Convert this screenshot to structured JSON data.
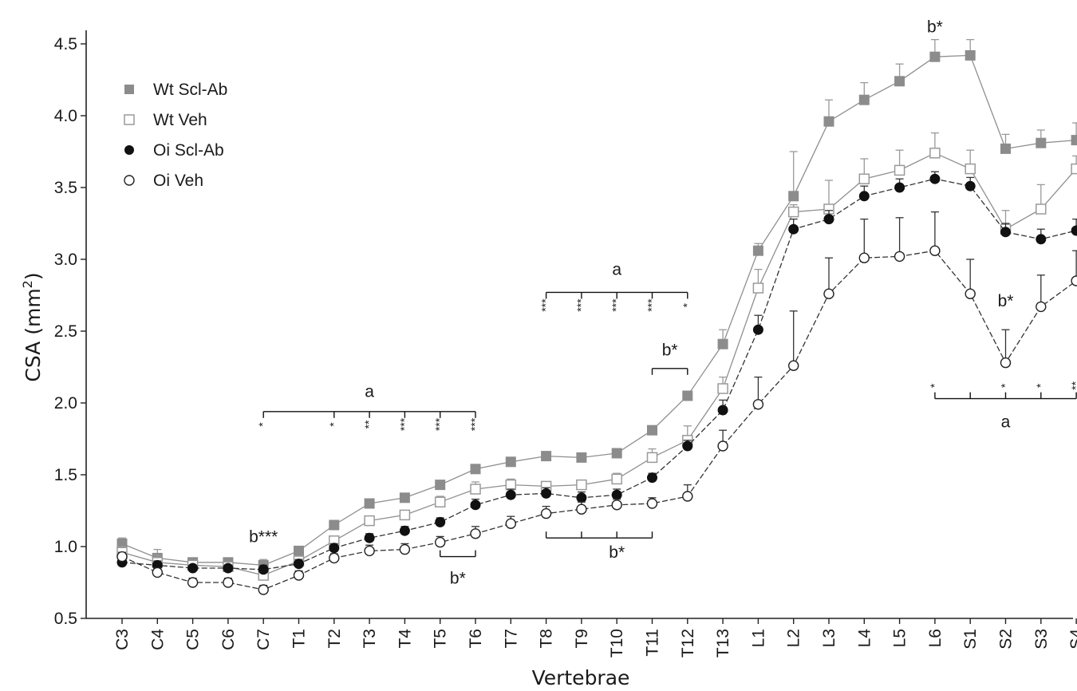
{
  "chart_data": {
    "type": "line",
    "xlabel": "Vertebrae",
    "ylabel_main": "CSA (mm",
    "ylabel_sup": "2",
    "ylabel_close": ")",
    "ylim": [
      0.5,
      4.6
    ],
    "yticks": [
      "0.5",
      "1.0",
      "1.5",
      "2.0",
      "2.5",
      "3.0",
      "3.5",
      "4.0",
      "4.5"
    ],
    "ytick_values": [
      0.5,
      1.0,
      1.5,
      2.0,
      2.5,
      3.0,
      3.5,
      4.0,
      4.5
    ],
    "categories": [
      "C3",
      "C4",
      "C5",
      "C6",
      "C7",
      "T1",
      "T2",
      "T3",
      "T4",
      "T5",
      "T6",
      "T7",
      "T8",
      "T9",
      "T10",
      "T11",
      "T12",
      "T13",
      "L1",
      "L2",
      "L3",
      "L4",
      "L5",
      "L6",
      "S1",
      "S2",
      "S3",
      "S4"
    ],
    "grid": false,
    "legend_position": "top-left",
    "series": [
      {
        "name": "Wt Scl-Ab",
        "marker": "square-filled",
        "color": "#8c8c8c",
        "values": [
          1.02,
          0.92,
          0.89,
          0.89,
          0.87,
          0.97,
          1.15,
          1.3,
          1.34,
          1.43,
          1.54,
          1.59,
          1.63,
          1.62,
          1.65,
          1.81,
          2.05,
          2.41,
          3.06,
          3.44,
          3.96,
          4.11,
          4.24,
          4.41,
          4.42,
          3.77,
          3.81,
          3.83
        ],
        "errors": [
          0.04,
          0.06,
          0.03,
          0.03,
          0.04,
          0.03,
          0.03,
          0.03,
          0.03,
          0.03,
          0.02,
          0.02,
          0.02,
          0.02,
          0.02,
          0.03,
          0.03,
          0.1,
          0.05,
          0.31,
          0.15,
          0.12,
          0.12,
          0.12,
          0.11,
          0.1,
          0.09,
          0.12
        ]
      },
      {
        "name": "Wt Veh",
        "marker": "square-open",
        "color": "#9a9a9a",
        "values": [
          0.96,
          0.89,
          0.87,
          0.86,
          0.8,
          0.9,
          1.04,
          1.18,
          1.22,
          1.31,
          1.4,
          1.43,
          1.42,
          1.43,
          1.47,
          1.62,
          1.74,
          2.1,
          2.8,
          3.33,
          3.35,
          3.56,
          3.62,
          3.74,
          3.63,
          3.21,
          3.35,
          3.63
        ],
        "errors": [
          0.04,
          0.05,
          0.03,
          0.03,
          0.04,
          0.03,
          0.03,
          0.03,
          0.03,
          0.04,
          0.05,
          0.04,
          0.03,
          0.03,
          0.04,
          0.06,
          0.1,
          0.08,
          0.13,
          0.05,
          0.2,
          0.14,
          0.14,
          0.14,
          0.13,
          0.13,
          0.17,
          0.09
        ]
      },
      {
        "name": "Oi Scl-Ab",
        "marker": "circle-filled",
        "color": "#111111",
        "values": [
          0.89,
          0.87,
          0.85,
          0.85,
          0.84,
          0.88,
          0.99,
          1.06,
          1.11,
          1.17,
          1.29,
          1.36,
          1.37,
          1.34,
          1.36,
          1.48,
          1.7,
          1.95,
          2.51,
          3.21,
          3.28,
          3.44,
          3.5,
          3.56,
          3.51,
          3.19,
          3.14,
          3.2
        ],
        "errors": [
          0.02,
          0.03,
          0.02,
          0.02,
          0.03,
          0.03,
          0.03,
          0.03,
          0.03,
          0.03,
          0.04,
          0.04,
          0.04,
          0.04,
          0.04,
          0.03,
          0.04,
          0.07,
          0.1,
          0.07,
          0.06,
          0.07,
          0.06,
          0.05,
          0.06,
          0.06,
          0.07,
          0.08
        ]
      },
      {
        "name": "Oi Veh",
        "marker": "circle-open",
        "color": "#111111",
        "values": [
          0.93,
          0.82,
          0.75,
          0.75,
          0.7,
          0.8,
          0.92,
          0.97,
          0.98,
          1.03,
          1.09,
          1.16,
          1.23,
          1.26,
          1.29,
          1.3,
          1.35,
          1.7,
          1.99,
          2.26,
          2.76,
          3.01,
          3.02,
          3.06,
          2.76,
          2.28,
          2.67,
          2.85
        ],
        "errors": [
          0.03,
          0.03,
          0.03,
          0.03,
          0.03,
          0.03,
          0.03,
          0.04,
          0.04,
          0.04,
          0.05,
          0.05,
          0.05,
          0.05,
          0.04,
          0.04,
          0.08,
          0.11,
          0.19,
          0.38,
          0.25,
          0.27,
          0.27,
          0.27,
          0.24,
          0.23,
          0.22,
          0.21
        ]
      }
    ],
    "annotations": [
      {
        "text": "b***",
        "cat": 4,
        "y": 1.07
      },
      {
        "text": "b*",
        "cat": 23,
        "y": 4.62
      },
      {
        "text": "b*",
        "cat": 25,
        "y": 2.71
      },
      {
        "text": "b*",
        "cat": 9.5,
        "y": 0.78
      },
      {
        "text": "b*",
        "cat": 14,
        "y": 0.96
      },
      {
        "text": "b*",
        "cat": 15.5,
        "y": 2.37
      },
      {
        "text": "a",
        "cat": 7,
        "y": 2.08
      },
      {
        "text": "a",
        "cat": 14,
        "y": 2.93
      },
      {
        "text": "a",
        "cat": 25,
        "y": 1.87
      }
    ],
    "stars": [
      {
        "text": "*",
        "cat": 4,
        "y": 1.85
      },
      {
        "text": "*",
        "cat": 6,
        "y": 1.85
      },
      {
        "text": "**",
        "cat": 7,
        "y": 1.85
      },
      {
        "text": "***",
        "cat": 8,
        "y": 1.85
      },
      {
        "text": "***",
        "cat": 9,
        "y": 1.85
      },
      {
        "text": "***",
        "cat": 10,
        "y": 1.85
      },
      {
        "text": "***",
        "cat": 12,
        "y": 2.68
      },
      {
        "text": "***",
        "cat": 13,
        "y": 2.68
      },
      {
        "text": "***",
        "cat": 14,
        "y": 2.68
      },
      {
        "text": "***",
        "cat": 15,
        "y": 2.68
      },
      {
        "text": "*",
        "cat": 16,
        "y": 2.68
      },
      {
        "text": "*",
        "cat": 23,
        "y": 2.12
      },
      {
        "text": "*",
        "cat": 25,
        "y": 2.12
      },
      {
        "text": "*",
        "cat": 26,
        "y": 2.12
      },
      {
        "text": "**",
        "cat": 27,
        "y": 2.12
      }
    ],
    "brackets": [
      {
        "x1": 4,
        "x2": 10,
        "y": 1.94,
        "dir": "down",
        "ticks": [
          4,
          6,
          7,
          8,
          9,
          10
        ]
      },
      {
        "x1": 12,
        "x2": 16,
        "y": 2.77,
        "dir": "down",
        "ticks": [
          12,
          13,
          14,
          15,
          16
        ]
      },
      {
        "x1": 23,
        "x2": 27,
        "y": 2.03,
        "dir": "up",
        "ticks": [
          23,
          24,
          25,
          26,
          27
        ]
      },
      {
        "x1": 12,
        "x2": 15,
        "y": 1.06,
        "dir": "up",
        "ticks": [
          12,
          13,
          14,
          15
        ]
      },
      {
        "x1": 9,
        "x2": 10,
        "y": 0.93,
        "dir": "up",
        "ticks": [
          9,
          10
        ]
      },
      {
        "x1": 15,
        "x2": 16,
        "y": 2.24,
        "dir": "down",
        "ticks": [
          15,
          16
        ]
      }
    ]
  }
}
